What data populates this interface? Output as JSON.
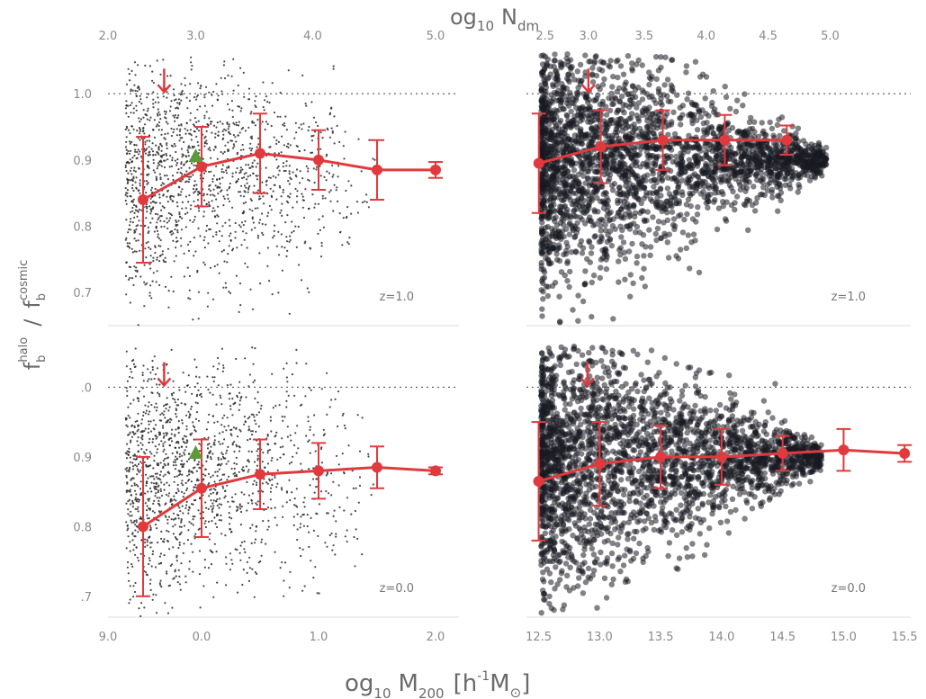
{
  "figure": {
    "top_axis_label": "og",
    "top_axis_sub": "10",
    "top_axis_var": "N",
    "top_axis_var_sub": "dm",
    "bottom_axis_label": "og",
    "bottom_axis_sub": "10",
    "bottom_axis_var": "M",
    "bottom_axis_var_sub": "200",
    "bottom_axis_units_open": "[h",
    "bottom_axis_units_sup": "-1",
    "bottom_axis_units_close": "M",
    "bottom_axis_units_sun": "⊙",
    "bottom_axis_units_end": "]",
    "y_axis_num": "f",
    "y_axis_num_sup": "halo",
    "y_axis_num_sub": "b",
    "y_axis_slash": "/",
    "y_axis_den": "f",
    "y_axis_den_sup": "cosmic",
    "y_axis_den_sub": "b"
  },
  "colors": {
    "median": "#e03a3e",
    "triangle": "#5a9a3a",
    "dots": "#2a2a2a",
    "reference": "#555555"
  },
  "chart_data": [
    {
      "panel": "top-left",
      "type": "scatter",
      "annotation": "z=1.0",
      "xlim": [
        9.2,
        12.2
      ],
      "ylim": [
        0.65,
        1.06
      ],
      "x_ticks": [],
      "y_ticks": [
        "1.0",
        "0.9",
        "0.8",
        "0.7"
      ],
      "y_tick_values": [
        1.0,
        0.9,
        0.8,
        0.7
      ],
      "top_ticks": [
        "2.0",
        "3.0",
        "4.0",
        "5.0"
      ],
      "top_tick_x": [
        9.2,
        9.95,
        10.95,
        12.0
      ],
      "reference_line": 1.0,
      "arrow_x": 9.68,
      "triangle": {
        "x": 9.95,
        "y": 0.905
      },
      "series": [
        {
          "x": [
            9.5,
            10.0,
            10.5,
            11.0,
            11.5,
            12.0
          ],
          "y": [
            0.84,
            0.89,
            0.91,
            0.9,
            0.885,
            0.885
          ],
          "err": [
            0.095,
            0.06,
            0.06,
            0.045,
            0.045,
            0.012
          ]
        }
      ]
    },
    {
      "panel": "top-right",
      "type": "scatter",
      "annotation": "z=1.0",
      "xlim": [
        12.4,
        15.5
      ],
      "ylim": [
        0.65,
        1.06
      ],
      "x_ticks": [],
      "y_ticks": [],
      "top_ticks": [
        "2.5",
        "3.0",
        "3.5",
        "4.0",
        "4.5",
        "5.0"
      ],
      "top_tick_x": [
        12.55,
        12.9,
        13.35,
        13.85,
        14.35,
        14.85
      ],
      "reference_line": 1.0,
      "arrow_x": 12.9,
      "series": [
        {
          "x": [
            12.5,
            13.0,
            13.5,
            14.0,
            14.5
          ],
          "y": [
            0.895,
            0.92,
            0.93,
            0.93,
            0.93
          ],
          "err": [
            0.075,
            0.055,
            0.045,
            0.038,
            0.022
          ]
        }
      ]
    },
    {
      "panel": "bottom-left",
      "type": "scatter",
      "annotation": "z=0.0",
      "xlim": [
        9.2,
        12.2
      ],
      "ylim": [
        0.67,
        1.06
      ],
      "x_ticks": [
        "9.0",
        "0.0",
        "1.0",
        "2.0"
      ],
      "x_tick_values": [
        9.2,
        10.0,
        11.0,
        12.0
      ],
      "y_ticks": [
        ".0",
        "0.9",
        "0.8",
        ".7"
      ],
      "y_tick_values": [
        1.0,
        0.9,
        0.8,
        0.7
      ],
      "reference_line": 1.0,
      "arrow_x": 9.68,
      "triangle": {
        "x": 9.95,
        "y": 0.905
      },
      "series": [
        {
          "x": [
            9.5,
            10.0,
            10.5,
            11.0,
            11.5,
            12.0
          ],
          "y": [
            0.8,
            0.855,
            0.875,
            0.88,
            0.885,
            0.88
          ],
          "err": [
            0.1,
            0.07,
            0.05,
            0.04,
            0.03,
            0.005
          ]
        }
      ]
    },
    {
      "panel": "bottom-right",
      "type": "scatter",
      "annotation": "z=0.0",
      "xlim": [
        12.4,
        15.55
      ],
      "ylim": [
        0.67,
        1.06
      ],
      "x_ticks": [
        "12.5",
        "13.0",
        "13.5",
        "14.0",
        "14.5",
        "15.0",
        "15.5"
      ],
      "x_tick_values": [
        12.5,
        13.0,
        13.5,
        14.0,
        14.5,
        15.0,
        15.5
      ],
      "y_ticks": [],
      "reference_line": 1.0,
      "arrow_x": 12.9,
      "series": [
        {
          "x": [
            12.5,
            13.0,
            13.5,
            14.0,
            14.5,
            15.0,
            15.5
          ],
          "y": [
            0.865,
            0.89,
            0.9,
            0.9,
            0.905,
            0.91,
            0.905
          ],
          "err": [
            0.085,
            0.06,
            0.045,
            0.04,
            0.025,
            0.03,
            0.012
          ]
        }
      ]
    }
  ]
}
